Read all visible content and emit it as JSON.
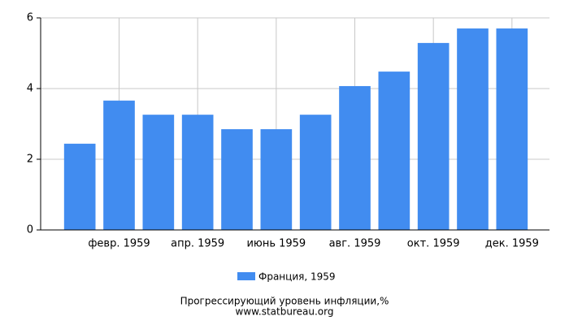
{
  "chart_data": {
    "type": "bar",
    "categories": [
      null,
      "февр. 1959",
      null,
      "апр. 1959",
      null,
      "июнь 1959",
      null,
      "авг. 1959",
      null,
      "окт. 1959",
      null,
      "дек. 1959"
    ],
    "series": [
      {
        "name": "Франция, 1959",
        "color": "#418cf0",
        "values": [
          2.44,
          3.66,
          3.26,
          3.26,
          2.85,
          2.85,
          3.26,
          4.07,
          4.48,
          5.29,
          5.7,
          5.7
        ]
      }
    ],
    "ylim": [
      0,
      6
    ],
    "yticks": [
      0,
      2,
      4,
      6
    ],
    "grid": true,
    "caption": "Прогрессирующий уровень инфляции,%",
    "source": "www.statbureau.org"
  }
}
